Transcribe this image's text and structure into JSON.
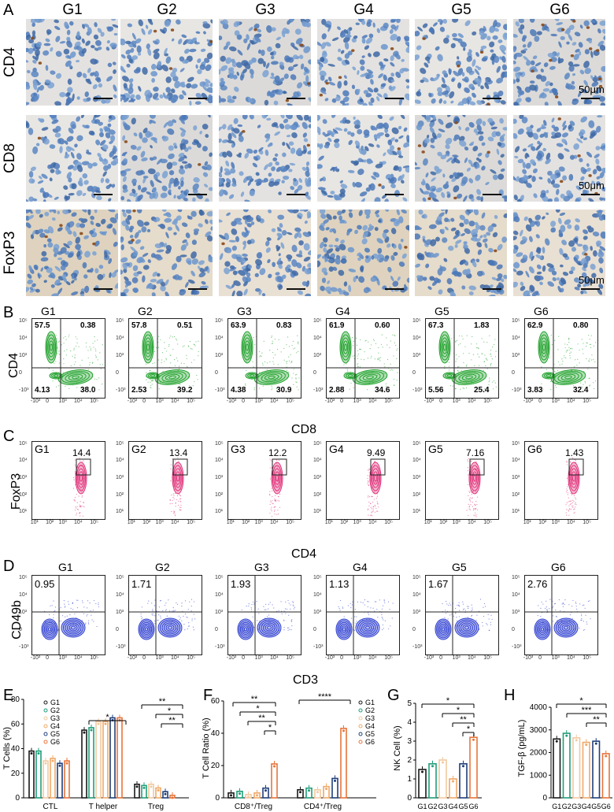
{
  "panels": {
    "A": "A",
    "B": "B",
    "C": "C",
    "D": "D",
    "E": "E",
    "F": "F",
    "G": "G",
    "H": "H"
  },
  "groups": [
    "G1",
    "G2",
    "G3",
    "G4",
    "G5",
    "G6"
  ],
  "ihc": {
    "rows": [
      "CD4",
      "CD8",
      "FoxP3"
    ],
    "scale_label": "50μm"
  },
  "flowB": {
    "ylabel": "CD4",
    "xlabel": "CD8",
    "quadrants": [
      {
        "ul": "57.5",
        "ur": "0.38",
        "ll": "4.13",
        "lr": "38.0"
      },
      {
        "ul": "57.8",
        "ur": "0.51",
        "ll": "2.53",
        "lr": "39.2"
      },
      {
        "ul": "63.9",
        "ur": "0.83",
        "ll": "4.38",
        "lr": "30.9"
      },
      {
        "ul": "61.9",
        "ur": "0.60",
        "ll": "2.88",
        "lr": "34.6"
      },
      {
        "ul": "67.3",
        "ur": "1.83",
        "ll": "5.56",
        "lr": "25.4"
      },
      {
        "ul": "62.9",
        "ur": "0.80",
        "ll": "3.83",
        "lr": "32.4"
      }
    ]
  },
  "flowC": {
    "ylabel": "FoxP3",
    "xlabel": "CD4",
    "gates": [
      "14.4",
      "13.4",
      "12.2",
      "9.49",
      "7.16",
      "1.43"
    ]
  },
  "flowD": {
    "ylabel": "CD49b",
    "xlabel": "CD3",
    "gates": [
      "0.95",
      "1.71",
      "1.93",
      "1.13",
      "1.67",
      "2.76"
    ]
  },
  "axis_ticks": {
    "x": [
      "-10³",
      "0",
      "10³",
      "10⁴",
      "10⁵"
    ],
    "y": [
      "10⁵",
      "10⁴",
      "10³",
      "0",
      "-10³"
    ],
    "yC": [
      "10⁵",
      "10⁴",
      "10³",
      "10²",
      "10¹"
    ],
    "xC": [
      "10¹",
      "10²",
      "10³",
      "10⁴",
      "10⁵"
    ]
  },
  "colors": {
    "G1": "#1a1a1a",
    "G2": "#1f9e7a",
    "G3": "#f2c9a0",
    "G4": "#f0a868",
    "G5": "#1f3f7a",
    "G6": "#e8743b",
    "flowB": "#1fa12a",
    "flowC": "#e0337a",
    "flowD": "#2f3fd0"
  },
  "chart_data": [
    {
      "type": "bar",
      "panel": "E",
      "ylabel": "T Cells (%)",
      "categories": [
        "CTL",
        "T helper",
        "Treg"
      ],
      "ylim": [
        0,
        80
      ],
      "yticks": [
        "0",
        "20",
        "40",
        "60",
        "80"
      ],
      "legend": [
        "G1",
        "G2",
        "G3",
        "G4",
        "G5",
        "G6"
      ],
      "series": [
        {
          "name": "G1",
          "values": [
            38,
            55,
            11
          ]
        },
        {
          "name": "G2",
          "values": [
            38,
            57,
            10
          ]
        },
        {
          "name": "G3",
          "values": [
            30,
            62,
            11
          ]
        },
        {
          "name": "G4",
          "values": [
            32,
            62,
            8
          ]
        },
        {
          "name": "G5",
          "values": [
            28,
            65,
            5
          ]
        },
        {
          "name": "G6",
          "values": [
            30,
            65,
            2
          ]
        }
      ],
      "significance": [
        "*",
        "**",
        "*",
        "**"
      ]
    },
    {
      "type": "bar",
      "panel": "F",
      "ylabel": "T Cell Ratio (%)",
      "categories": [
        "CD8⁺/Treg",
        "CD4⁺/Treg"
      ],
      "ylim": [
        0,
        60
      ],
      "yticks": [
        "0",
        "20",
        "40",
        "60"
      ],
      "legend": [
        "G1",
        "G2",
        "G3",
        "G4",
        "G5",
        "G6"
      ],
      "series": [
        {
          "name": "G1",
          "values": [
            3,
            5
          ]
        },
        {
          "name": "G2",
          "values": [
            4,
            6
          ]
        },
        {
          "name": "G3",
          "values": [
            2,
            5
          ]
        },
        {
          "name": "G4",
          "values": [
            3,
            7
          ]
        },
        {
          "name": "G5",
          "values": [
            6,
            12
          ]
        },
        {
          "name": "G6",
          "values": [
            21,
            43
          ]
        }
      ],
      "significance": [
        "**",
        "*",
        "**",
        "*",
        "****"
      ]
    },
    {
      "type": "bar",
      "panel": "G",
      "ylabel": "NK Cell (%)",
      "categories": [
        "G1",
        "G2",
        "G3",
        "G4",
        "G5",
        "G6"
      ],
      "ylim": [
        0,
        5
      ],
      "yticks": [
        "0",
        "1",
        "2",
        "3",
        "4",
        "5"
      ],
      "values": [
        1.5,
        1.8,
        2.0,
        1.0,
        1.8,
        3.2
      ],
      "significance": [
        "*",
        "*",
        "**",
        "*"
      ]
    },
    {
      "type": "bar",
      "panel": "H",
      "ylabel": "TGF-β (pg/mL)",
      "categories": [
        "G1",
        "G2",
        "G3",
        "G4",
        "G5",
        "G6"
      ],
      "ylim": [
        0,
        4000
      ],
      "yticks": [
        "0",
        "1000",
        "2000",
        "3000",
        "4000"
      ],
      "values": [
        2600,
        2850,
        2650,
        2450,
        2500,
        1950
      ],
      "significance": [
        "*",
        "***",
        "**"
      ]
    }
  ]
}
